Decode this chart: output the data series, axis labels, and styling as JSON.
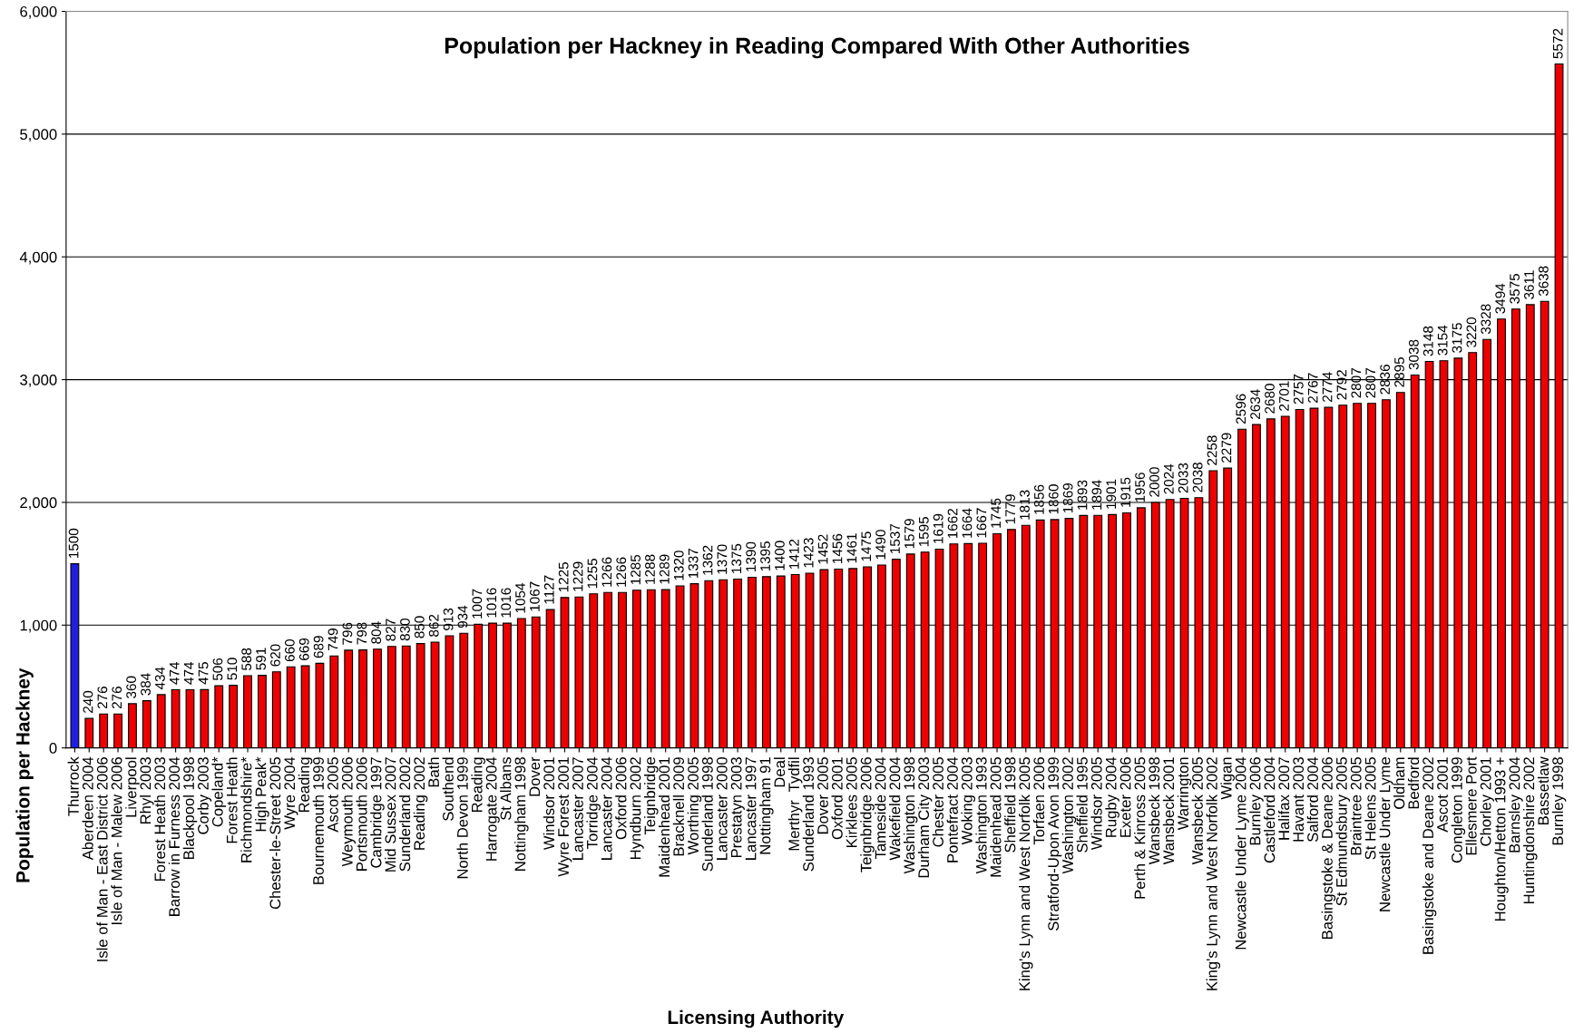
{
  "chart_data": {
    "type": "bar",
    "title": "Population per Hackney in Reading Compared With Other Authorities",
    "xlabel": "Licensing Authority",
    "ylabel": "Population per Hackney",
    "categories": [
      "Thurrock",
      "Aberdeen 2004",
      "Isle of Man - East District 2006",
      "Isle of Man - Malew 2006",
      "Liverpool",
      "Rhyl 2003",
      "Forest Heath 2003",
      "Barrow in Furness 2004",
      "Blackpool 1998",
      "Corby 2003",
      "Copeland*",
      "Forest Heath",
      "Richmondshire*",
      "High Peak*",
      "Chester-le-Street 2005",
      "Wyre 2004",
      "Reading",
      "Bournemouth 1999",
      "Ascot 2005",
      "Weymouth 2006",
      "Portsmouth 2006",
      "Cambridge 1997",
      "Mid Sussex 2007",
      "Sunderland 2002",
      "Reading 2002",
      "Bath",
      "Southend",
      "North Devon 1999",
      "Reading",
      "Harrogate 2004",
      "St Albans",
      "Nottingham 1998",
      "Dover",
      "Windsor 2001",
      "Wyre Forest 2001",
      "Lancaster 2007",
      "Torridge 2004",
      "Lancaster 2004",
      "Oxford 2006",
      "Hyndburn 2002",
      "Teignbridge",
      "Maidenhead 2001",
      "Bracknell 2009",
      "Worthing 2005",
      "Sunderland 1998",
      "Lancaster 2000",
      "Prestatyn 2003",
      "Lancaster 1997",
      "Nottingham 91",
      "Deal",
      "Merthyr  Tydfil",
      "Sunderland 1993",
      "Dover 2005",
      "Oxford 2001",
      "Kirklees 2005",
      "Teignbridge 2006",
      "Tameside 2004",
      "Wakefield 2004",
      "Washington 1998",
      "Durham City 2003",
      "Chester 2005",
      "Pontefract 2004",
      "Woking 2003",
      "Washington 1993",
      "Maidenhead 2005",
      "Sheffield 1998",
      "King's Lynn and West Norfolk 2005",
      "Torfaen 2006",
      "Stratford-Upon Avon 1999",
      "Washington 2002",
      "Sheffield 1995",
      "Windsor 2005",
      "Rugby 2004",
      "Exeter 2006",
      "Perth & Kinross 2005",
      "Wansbeck 1998",
      "Wansbeck 2001",
      "Warrington",
      "Wansbeck 2005",
      "King's Lynn and West Norfolk 2002",
      "Wigan",
      "Newcastle Under Lyme 2004",
      "Burnley 2006",
      "Castleford 2004",
      "Halifax 2007",
      "Havant 2003",
      "Salford 2004",
      "Basingstoke & Deane 2006",
      "St Edmundsbury 2005",
      "Braintree 2005",
      "St Helens 2005",
      "Newcastle Under Lyme",
      "Oldham",
      "Bedford",
      "Basingstoke and Deane 2002",
      "Ascot 2001",
      "Congleton 1999",
      "Ellesmere Port",
      "Chorley 2001",
      "Houghton/Hetton 1993 +",
      "Barnsley 2004",
      "Huntingdonshire 2002",
      "Bassetlaw",
      "Burnley 1998"
    ],
    "values": [
      1500,
      240,
      276,
      276,
      360,
      384,
      434,
      474,
      474,
      475,
      506,
      510,
      588,
      591,
      620,
      660,
      669,
      689,
      749,
      796,
      798,
      804,
      827,
      830,
      850,
      862,
      913,
      934,
      1007,
      1016,
      1016,
      1054,
      1067,
      1127,
      1225,
      1229,
      1255,
      1266,
      1266,
      1285,
      1288,
      1289,
      1320,
      1337,
      1362,
      1370,
      1375,
      1390,
      1395,
      1400,
      1412,
      1423,
      1452,
      1456,
      1461,
      1475,
      1490,
      1537,
      1579,
      1595,
      1619,
      1662,
      1664,
      1667,
      1745,
      1779,
      1813,
      1856,
      1860,
      1869,
      1893,
      1894,
      1901,
      1915,
      1956,
      2000,
      2024,
      2033,
      2038,
      2258,
      2279,
      2596,
      2634,
      2680,
      2701,
      2757,
      2767,
      2774,
      2792,
      2807,
      2807,
      2836,
      2895,
      3038,
      3148,
      3154,
      3175,
      3220,
      3328,
      3494,
      3575,
      3611,
      3638,
      5572
    ],
    "colors": [
      "#1f1fe0",
      "#ee0000",
      "#ee0000",
      "#ee0000",
      "#ee0000",
      "#ee0000",
      "#ee0000",
      "#ee0000",
      "#ee0000",
      "#ee0000",
      "#ee0000",
      "#ee0000",
      "#ee0000",
      "#ee0000",
      "#ee0000",
      "#ee0000",
      "#ee0000",
      "#ee0000",
      "#ee0000",
      "#ee0000",
      "#ee0000",
      "#ee0000",
      "#ee0000",
      "#ee0000",
      "#ee0000",
      "#ee0000",
      "#ee0000",
      "#ee0000",
      "#ee0000",
      "#ee0000",
      "#ee0000",
      "#ee0000",
      "#ee0000",
      "#ee0000",
      "#ee0000",
      "#ee0000",
      "#ee0000",
      "#ee0000",
      "#ee0000",
      "#ee0000",
      "#ee0000",
      "#ee0000",
      "#ee0000",
      "#ee0000",
      "#ee0000",
      "#ee0000",
      "#ee0000",
      "#ee0000",
      "#ee0000",
      "#ee0000",
      "#ee0000",
      "#ee0000",
      "#ee0000",
      "#ee0000",
      "#ee0000",
      "#ee0000",
      "#ee0000",
      "#ee0000",
      "#ee0000",
      "#ee0000",
      "#ee0000",
      "#ee0000",
      "#ee0000",
      "#ee0000",
      "#ee0000",
      "#ee0000",
      "#ee0000",
      "#ee0000",
      "#ee0000",
      "#ee0000",
      "#ee0000",
      "#ee0000",
      "#ee0000",
      "#ee0000",
      "#ee0000",
      "#ee0000",
      "#ee0000",
      "#ee0000",
      "#ee0000",
      "#ee0000",
      "#ee0000",
      "#ee0000",
      "#ee0000",
      "#ee0000",
      "#ee0000",
      "#ee0000",
      "#ee0000",
      "#ee0000",
      "#ee0000",
      "#ee0000",
      "#ee0000",
      "#ee0000",
      "#ee0000",
      "#ee0000",
      "#ee0000",
      "#ee0000",
      "#ee0000",
      "#ee0000",
      "#ee0000",
      "#ee0000",
      "#ee0000",
      "#ee0000",
      "#ee0000",
      "#ee0000"
    ],
    "ylim": [
      0,
      6000
    ],
    "yticks": [
      {
        "value": 0,
        "label": "0"
      },
      {
        "value": 1000,
        "label": "1,000"
      },
      {
        "value": 2000,
        "label": "2,000"
      },
      {
        "value": 3000,
        "label": "3,000"
      },
      {
        "value": 4000,
        "label": "4,000"
      },
      {
        "value": 5000,
        "label": "5,000"
      },
      {
        "value": 6000,
        "label": "6,000"
      }
    ],
    "grid": "y",
    "data_labels": true,
    "legend": false
  }
}
